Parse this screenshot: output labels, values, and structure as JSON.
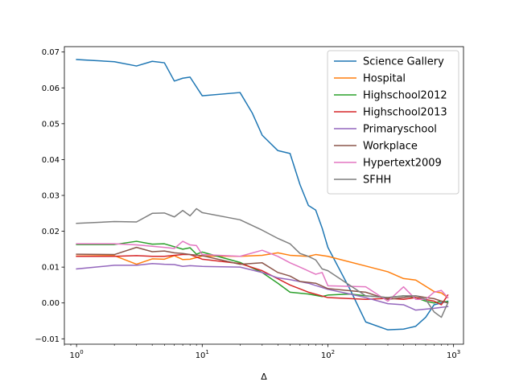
{
  "chart_data": {
    "type": "line",
    "title": "",
    "xlabel": "Δ",
    "ylabel": "",
    "xscale": "log",
    "xlim": [
      0.8,
      1200
    ],
    "ylim": [
      -0.0115,
      0.0715
    ],
    "xticks": [
      {
        "value": 1,
        "base": "10",
        "exp": "0"
      },
      {
        "value": 10,
        "base": "10",
        "exp": "1"
      },
      {
        "value": 100,
        "base": "10",
        "exp": "2"
      },
      {
        "value": 1000,
        "base": "10",
        "exp": "3"
      }
    ],
    "yticks": [
      {
        "value": -0.01,
        "label": "−0.01"
      },
      {
        "value": 0.0,
        "label": "0.00"
      },
      {
        "value": 0.01,
        "label": "0.01"
      },
      {
        "value": 0.02,
        "label": "0.02"
      },
      {
        "value": 0.03,
        "label": "0.03"
      },
      {
        "value": 0.04,
        "label": "0.04"
      },
      {
        "value": 0.05,
        "label": "0.05"
      },
      {
        "value": 0.06,
        "label": "0.06"
      },
      {
        "value": 0.07,
        "label": "0.07"
      }
    ],
    "grid": false,
    "legend_position": "top-right",
    "series": [
      {
        "name": "Science Gallery",
        "color": "#1f77b4",
        "points": [
          [
            1,
            0.0679
          ],
          [
            2,
            0.0673
          ],
          [
            3,
            0.0661
          ],
          [
            4,
            0.0674
          ],
          [
            5,
            0.067
          ],
          [
            6,
            0.0619
          ],
          [
            7,
            0.0627
          ],
          [
            8,
            0.063
          ],
          [
            10,
            0.0578
          ],
          [
            20,
            0.0587
          ],
          [
            25,
            0.053
          ],
          [
            30,
            0.0468
          ],
          [
            40,
            0.0425
          ],
          [
            50,
            0.0417
          ],
          [
            60,
            0.033
          ],
          [
            70,
            0.0272
          ],
          [
            80,
            0.0259
          ],
          [
            90,
            0.0209
          ],
          [
            100,
            0.0155
          ],
          [
            150,
            0.0038
          ],
          [
            200,
            -0.0053
          ],
          [
            300,
            -0.0075
          ],
          [
            400,
            -0.0073
          ],
          [
            500,
            -0.0065
          ],
          [
            600,
            -0.004
          ],
          [
            700,
            -0.0005
          ],
          [
            800,
            0.0
          ],
          [
            900,
            0.0005
          ]
        ]
      },
      {
        "name": "Hospital",
        "color": "#ff7f0e",
        "points": [
          [
            1,
            0.0131
          ],
          [
            2,
            0.0132
          ],
          [
            3,
            0.0108
          ],
          [
            4,
            0.0123
          ],
          [
            5,
            0.0122
          ],
          [
            6,
            0.0132
          ],
          [
            7,
            0.0121
          ],
          [
            8,
            0.0122
          ],
          [
            10,
            0.0131
          ],
          [
            20,
            0.013
          ],
          [
            30,
            0.0133
          ],
          [
            40,
            0.014
          ],
          [
            50,
            0.0133
          ],
          [
            70,
            0.013
          ],
          [
            80,
            0.0135
          ],
          [
            100,
            0.013
          ],
          [
            200,
            0.0103
          ],
          [
            300,
            0.0087
          ],
          [
            400,
            0.0068
          ],
          [
            500,
            0.0064
          ],
          [
            700,
            0.0032
          ],
          [
            800,
            0.0028
          ],
          [
            900,
            0.0015
          ]
        ]
      },
      {
        "name": "Highschool2012",
        "color": "#2ca02c",
        "points": [
          [
            1,
            0.0163
          ],
          [
            2,
            0.0163
          ],
          [
            3,
            0.0172
          ],
          [
            4,
            0.0164
          ],
          [
            5,
            0.0165
          ],
          [
            7,
            0.015
          ],
          [
            8,
            0.0154
          ],
          [
            9,
            0.0136
          ],
          [
            10,
            0.0142
          ],
          [
            20,
            0.0113
          ],
          [
            30,
            0.0085
          ],
          [
            40,
            0.0055
          ],
          [
            50,
            0.003
          ],
          [
            70,
            0.0025
          ],
          [
            90,
            0.0018
          ],
          [
            100,
            0.0022
          ],
          [
            150,
            0.0025
          ],
          [
            200,
            0.002
          ],
          [
            300,
            0.0015
          ],
          [
            400,
            0.002
          ],
          [
            500,
            0.0015
          ],
          [
            600,
            0.0005
          ],
          [
            700,
            0.0
          ],
          [
            800,
            0.0005
          ],
          [
            900,
            0.0003
          ]
        ]
      },
      {
        "name": "Highschool2013",
        "color": "#d62728",
        "points": [
          [
            1,
            0.013
          ],
          [
            2,
            0.013
          ],
          [
            3,
            0.0132
          ],
          [
            4,
            0.013
          ],
          [
            5,
            0.013
          ],
          [
            7,
            0.0135
          ],
          [
            8,
            0.0135
          ],
          [
            10,
            0.0122
          ],
          [
            20,
            0.011
          ],
          [
            30,
            0.009
          ],
          [
            50,
            0.005
          ],
          [
            70,
            0.003
          ],
          [
            100,
            0.0015
          ],
          [
            200,
            0.001
          ],
          [
            300,
            0.0013
          ],
          [
            400,
            0.001
          ],
          [
            500,
            0.0015
          ],
          [
            700,
            0.0005
          ],
          [
            800,
            -0.0005
          ],
          [
            900,
            0.0022
          ]
        ]
      },
      {
        "name": "Primaryschool",
        "color": "#9467bd",
        "points": [
          [
            1,
            0.0095
          ],
          [
            2,
            0.0105
          ],
          [
            3,
            0.0105
          ],
          [
            4,
            0.011
          ],
          [
            5,
            0.0108
          ],
          [
            6,
            0.0107
          ],
          [
            7,
            0.0102
          ],
          [
            8,
            0.0104
          ],
          [
            10,
            0.0102
          ],
          [
            20,
            0.01
          ],
          [
            30,
            0.0085
          ],
          [
            40,
            0.007
          ],
          [
            50,
            0.0065
          ],
          [
            70,
            0.0055
          ],
          [
            100,
            0.0038
          ],
          [
            150,
            0.0025
          ],
          [
            200,
            0.0015
          ],
          [
            300,
            -0.0002
          ],
          [
            400,
            -0.0005
          ],
          [
            500,
            -0.002
          ],
          [
            700,
            -0.0015
          ],
          [
            900,
            -0.001
          ]
        ]
      },
      {
        "name": "Workplace",
        "color": "#8c564b",
        "points": [
          [
            1,
            0.0136
          ],
          [
            2,
            0.0135
          ],
          [
            3,
            0.0155
          ],
          [
            4,
            0.0143
          ],
          [
            5,
            0.0145
          ],
          [
            6,
            0.014
          ],
          [
            7,
            0.0138
          ],
          [
            8,
            0.0135
          ],
          [
            10,
            0.0132
          ],
          [
            20,
            0.0108
          ],
          [
            30,
            0.0112
          ],
          [
            40,
            0.0085
          ],
          [
            50,
            0.0075
          ],
          [
            60,
            0.006
          ],
          [
            80,
            0.0055
          ],
          [
            100,
            0.004
          ],
          [
            200,
            0.003
          ],
          [
            300,
            0.001
          ],
          [
            400,
            0.0015
          ],
          [
            500,
            0.002
          ],
          [
            600,
            0.0015
          ],
          [
            700,
            0.0012
          ],
          [
            800,
            0.0005
          ],
          [
            900,
            0.0
          ]
        ]
      },
      {
        "name": "Hypertext2009",
        "color": "#e377c2",
        "points": [
          [
            1,
            0.0165
          ],
          [
            2,
            0.0165
          ],
          [
            3,
            0.0162
          ],
          [
            4,
            0.0158
          ],
          [
            5,
            0.0155
          ],
          [
            6,
            0.0152
          ],
          [
            7,
            0.0172
          ],
          [
            8,
            0.0162
          ],
          [
            9,
            0.016
          ],
          [
            10,
            0.0135
          ],
          [
            20,
            0.013
          ],
          [
            30,
            0.0147
          ],
          [
            40,
            0.013
          ],
          [
            50,
            0.0112
          ],
          [
            60,
            0.01
          ],
          [
            80,
            0.008
          ],
          [
            90,
            0.0085
          ],
          [
            100,
            0.0048
          ],
          [
            200,
            0.0045
          ],
          [
            300,
            0.0005
          ],
          [
            400,
            0.0045
          ],
          [
            500,
            0.001
          ],
          [
            600,
            0.001
          ],
          [
            700,
            0.003
          ],
          [
            800,
            0.0035
          ],
          [
            900,
            0.0015
          ]
        ]
      },
      {
        "name": "SFHH",
        "color": "#7f7f7f",
        "points": [
          [
            1,
            0.0222
          ],
          [
            2,
            0.0227
          ],
          [
            3,
            0.0226
          ],
          [
            4,
            0.025
          ],
          [
            5,
            0.0251
          ],
          [
            6,
            0.024
          ],
          [
            7,
            0.0258
          ],
          [
            8,
            0.0243
          ],
          [
            9,
            0.0263
          ],
          [
            10,
            0.0252
          ],
          [
            20,
            0.0232
          ],
          [
            30,
            0.0203
          ],
          [
            40,
            0.018
          ],
          [
            50,
            0.0165
          ],
          [
            60,
            0.0138
          ],
          [
            70,
            0.013
          ],
          [
            80,
            0.012
          ],
          [
            90,
            0.0095
          ],
          [
            100,
            0.009
          ],
          [
            200,
            0.002
          ],
          [
            300,
            0.0015
          ],
          [
            400,
            0.002
          ],
          [
            500,
            0.002
          ],
          [
            600,
            0.001
          ],
          [
            700,
            -0.0025
          ],
          [
            800,
            -0.004
          ],
          [
            900,
            0.0
          ]
        ]
      }
    ]
  }
}
